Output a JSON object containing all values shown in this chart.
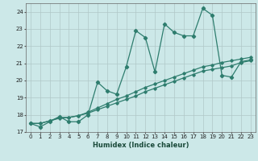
{
  "xlabel": "Humidex (Indice chaleur)",
  "ylabel": "",
  "bg_color": "#cce8e8",
  "grid_color": "#b0c8c8",
  "line_color": "#2e7d6e",
  "xlim": [
    -0.5,
    23.5
  ],
  "ylim": [
    17,
    24.5
  ],
  "yticks": [
    17,
    18,
    19,
    20,
    21,
    22,
    23,
    24
  ],
  "xticks": [
    0,
    1,
    2,
    3,
    4,
    5,
    6,
    7,
    8,
    9,
    10,
    11,
    12,
    13,
    14,
    15,
    16,
    17,
    18,
    19,
    20,
    21,
    22,
    23
  ],
  "series1_x": [
    0,
    1,
    2,
    3,
    4,
    5,
    6,
    7,
    8,
    9,
    10,
    11,
    12,
    13,
    14,
    15,
    16,
    17,
    18,
    19,
    20,
    21,
    22,
    23
  ],
  "series1_y": [
    17.5,
    17.3,
    17.6,
    17.9,
    17.6,
    17.6,
    18.0,
    19.9,
    19.4,
    19.2,
    20.8,
    22.9,
    22.5,
    20.5,
    23.3,
    22.8,
    22.6,
    22.6,
    24.2,
    23.8,
    20.3,
    20.2,
    21.1,
    21.2
  ],
  "series2_x": [
    0,
    1,
    2,
    3,
    4,
    5,
    6,
    7,
    8,
    9,
    10,
    11,
    12,
    13,
    14,
    15,
    16,
    17,
    18,
    19,
    20,
    21,
    22,
    23
  ],
  "series2_y": [
    17.5,
    17.5,
    17.65,
    17.8,
    17.85,
    17.95,
    18.1,
    18.3,
    18.5,
    18.7,
    18.9,
    19.1,
    19.35,
    19.55,
    19.75,
    19.95,
    20.15,
    20.35,
    20.55,
    20.65,
    20.75,
    20.85,
    21.05,
    21.15
  ],
  "series3_x": [
    0,
    1,
    2,
    3,
    4,
    5,
    6,
    7,
    8,
    9,
    10,
    11,
    12,
    13,
    14,
    15,
    16,
    17,
    18,
    19,
    20,
    21,
    22,
    23
  ],
  "series3_y": [
    17.5,
    17.5,
    17.65,
    17.85,
    17.85,
    17.95,
    18.15,
    18.4,
    18.65,
    18.9,
    19.1,
    19.35,
    19.6,
    19.8,
    20.0,
    20.2,
    20.4,
    20.6,
    20.8,
    20.9,
    21.05,
    21.15,
    21.25,
    21.35
  ]
}
